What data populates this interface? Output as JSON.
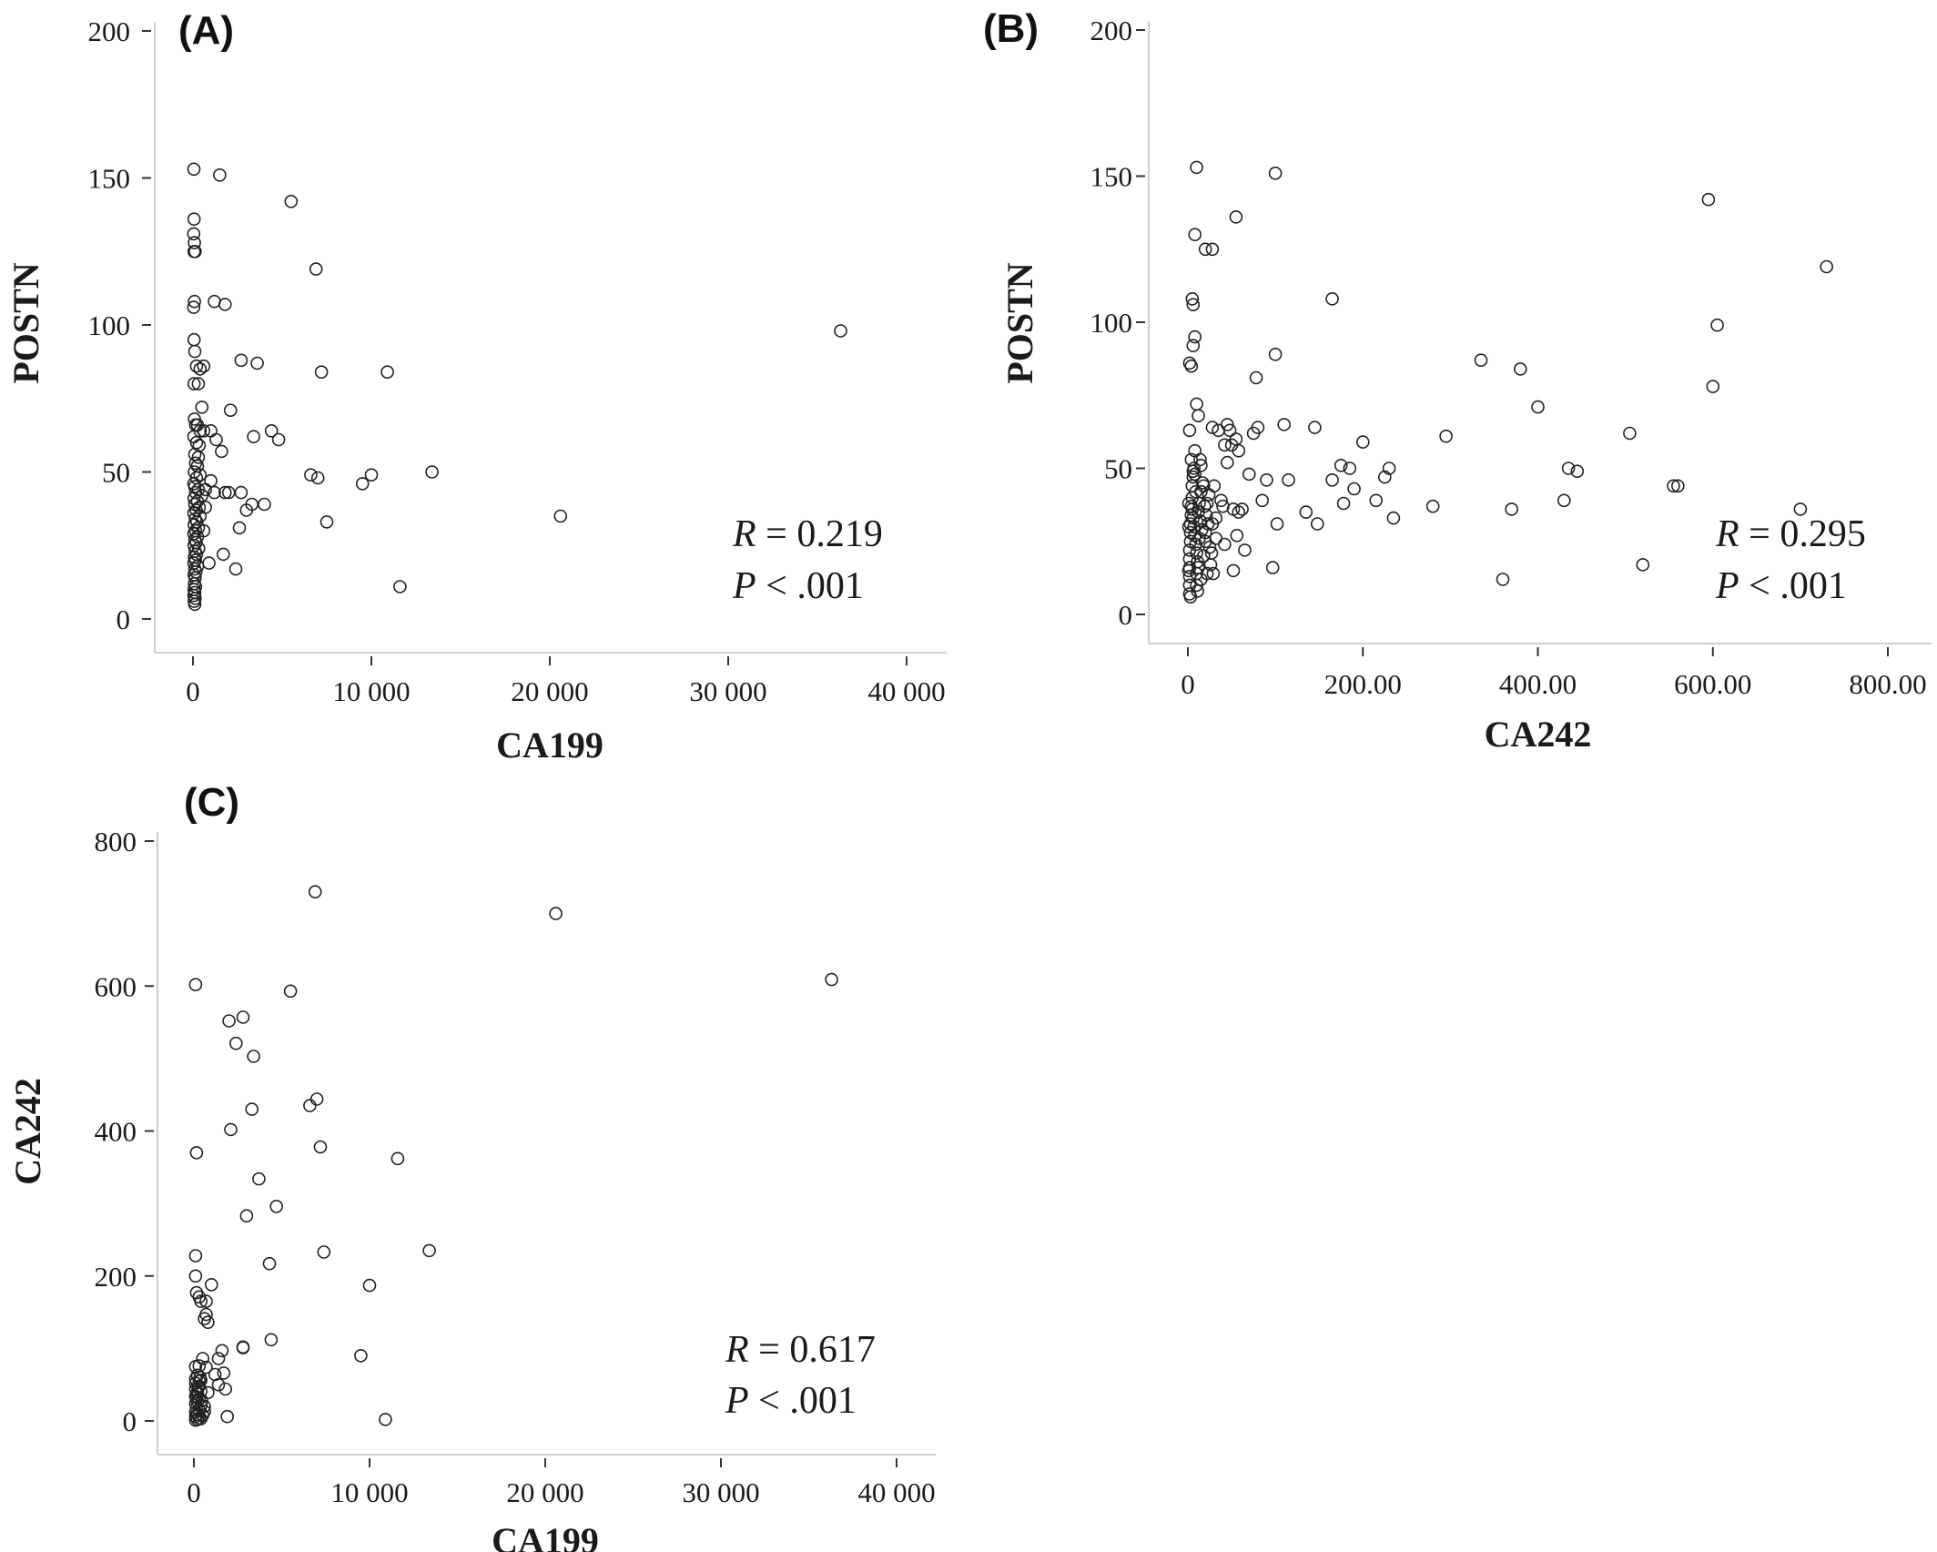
{
  "chart_data": [
    {
      "type": "scatter",
      "panel_label": "(A)",
      "xlabel": "CA199",
      "ylabel": "POSTN",
      "xlim": [
        0,
        40000
      ],
      "ylim": [
        0,
        200
      ],
      "xticks": [
        0,
        10000,
        20000,
        30000,
        40000
      ],
      "xtick_labels": [
        "0",
        "10 000",
        "20 000",
        "30 000",
        "40 000"
      ],
      "yticks": [
        0,
        50,
        100,
        150,
        200
      ],
      "ytick_labels": [
        "0",
        "50",
        "100",
        "150",
        "200"
      ],
      "annotation": {
        "r_label": "R",
        "r_value": " = 0.219",
        "p_label": "P",
        "p_value": " < .001"
      },
      "points": [
        [
          50,
          153
        ],
        [
          60,
          136
        ],
        [
          40,
          131
        ],
        [
          80,
          128
        ],
        [
          60,
          125
        ],
        [
          120,
          125
        ],
        [
          80,
          108
        ],
        [
          40,
          106
        ],
        [
          60,
          95
        ],
        [
          100,
          91
        ],
        [
          200,
          86
        ],
        [
          400,
          85
        ],
        [
          60,
          80
        ],
        [
          300,
          80
        ],
        [
          500,
          72
        ],
        [
          80,
          68
        ],
        [
          150,
          66
        ],
        [
          250,
          66
        ],
        [
          400,
          64
        ],
        [
          600,
          64
        ],
        [
          50,
          62
        ],
        [
          200,
          60
        ],
        [
          350,
          59
        ],
        [
          100,
          56
        ],
        [
          300,
          55
        ],
        [
          150,
          53
        ],
        [
          250,
          52
        ],
        [
          80,
          50
        ],
        [
          400,
          49
        ],
        [
          200,
          48
        ],
        [
          50,
          46
        ],
        [
          100,
          45
        ],
        [
          300,
          44
        ],
        [
          150,
          43
        ],
        [
          500,
          42
        ],
        [
          60,
          41
        ],
        [
          250,
          40
        ],
        [
          100,
          39
        ],
        [
          350,
          38
        ],
        [
          180,
          37
        ],
        [
          50,
          36
        ],
        [
          400,
          35
        ],
        [
          120,
          34
        ],
        [
          220,
          33
        ],
        [
          70,
          32
        ],
        [
          300,
          31
        ],
        [
          150,
          30
        ],
        [
          50,
          29
        ],
        [
          250,
          28
        ],
        [
          100,
          27
        ],
        [
          180,
          26
        ],
        [
          60,
          25
        ],
        [
          320,
          24
        ],
        [
          120,
          23
        ],
        [
          200,
          22
        ],
        [
          80,
          21
        ],
        [
          140,
          20
        ],
        [
          50,
          19
        ],
        [
          260,
          18
        ],
        [
          100,
          17
        ],
        [
          170,
          16
        ],
        [
          60,
          15
        ],
        [
          120,
          14
        ],
        [
          80,
          12
        ],
        [
          150,
          11
        ],
        [
          60,
          10
        ],
        [
          100,
          9
        ],
        [
          50,
          8
        ],
        [
          120,
          7
        ],
        [
          70,
          6
        ],
        [
          100,
          5
        ],
        [
          1500,
          151
        ],
        [
          1200,
          108
        ],
        [
          1800,
          107
        ],
        [
          600,
          86
        ],
        [
          1000,
          64
        ],
        [
          1300,
          61
        ],
        [
          2100,
          71
        ],
        [
          1600,
          57
        ],
        [
          1000,
          47
        ],
        [
          700,
          44
        ],
        [
          1200,
          43
        ],
        [
          1800,
          43
        ],
        [
          2000,
          43
        ],
        [
          700,
          38
        ],
        [
          600,
          30
        ],
        [
          900,
          19
        ],
        [
          1700,
          22
        ],
        [
          2400,
          17
        ],
        [
          2700,
          88
        ],
        [
          3600,
          87
        ],
        [
          2600,
          31
        ],
        [
          2700,
          43
        ],
        [
          3000,
          37
        ],
        [
          3300,
          39
        ],
        [
          3400,
          62
        ],
        [
          4000,
          39
        ],
        [
          4400,
          64
        ],
        [
          4800,
          61
        ],
        [
          5500,
          142
        ],
        [
          6600,
          49
        ],
        [
          7000,
          48
        ],
        [
          6900,
          119
        ],
        [
          7200,
          84
        ],
        [
          7500,
          33
        ],
        [
          9500,
          46
        ],
        [
          10000,
          49
        ],
        [
          10900,
          84
        ],
        [
          11600,
          11
        ],
        [
          13400,
          50
        ],
        [
          20600,
          35
        ],
        [
          36300,
          98
        ]
      ]
    },
    {
      "type": "scatter",
      "panel_label": "(B)",
      "xlabel": "CA242",
      "ylabel": "POSTN",
      "xlim": [
        0,
        800
      ],
      "ylim": [
        0,
        200
      ],
      "xticks": [
        0,
        200,
        400,
        600,
        800
      ],
      "xtick_labels": [
        "0",
        "200.00",
        "400.00",
        "600.00",
        "800.00"
      ],
      "yticks": [
        0,
        50,
        100,
        150,
        200
      ],
      "ytick_labels": [
        "0",
        "50",
        "100",
        "150",
        "200"
      ],
      "annotation": {
        "r_label": "R",
        "r_value": " = 0.295",
        "p_label": "P",
        "p_value": " < .001"
      },
      "points": [
        [
          10,
          153
        ],
        [
          100,
          151
        ],
        [
          8,
          130
        ],
        [
          55,
          136
        ],
        [
          20,
          125
        ],
        [
          28,
          125
        ],
        [
          5,
          108
        ],
        [
          6,
          106
        ],
        [
          165,
          108
        ],
        [
          8,
          95
        ],
        [
          6,
          92
        ],
        [
          2,
          86
        ],
        [
          4,
          85
        ],
        [
          100,
          89
        ],
        [
          335,
          87
        ],
        [
          380,
          84
        ],
        [
          605,
          99
        ],
        [
          730,
          119
        ],
        [
          595,
          142
        ],
        [
          600,
          78
        ],
        [
          400,
          71
        ],
        [
          505,
          62
        ],
        [
          555,
          44
        ],
        [
          560,
          44
        ],
        [
          435,
          50
        ],
        [
          445,
          49
        ],
        [
          430,
          39
        ],
        [
          370,
          36
        ],
        [
          295,
          61
        ],
        [
          280,
          37
        ],
        [
          230,
          50
        ],
        [
          225,
          47
        ],
        [
          235,
          33
        ],
        [
          215,
          39
        ],
        [
          200,
          59
        ],
        [
          175,
          51
        ],
        [
          185,
          50
        ],
        [
          190,
          43
        ],
        [
          178,
          38
        ],
        [
          165,
          46
        ],
        [
          145,
          64
        ],
        [
          135,
          35
        ],
        [
          148,
          31
        ],
        [
          110,
          65
        ],
        [
          115,
          46
        ],
        [
          102,
          31
        ],
        [
          97,
          16
        ],
        [
          90,
          46
        ],
        [
          85,
          39
        ],
        [
          80,
          64
        ],
        [
          75,
          62
        ],
        [
          78,
          81
        ],
        [
          70,
          48
        ],
        [
          65,
          22
        ],
        [
          55,
          60
        ],
        [
          58,
          56
        ],
        [
          52,
          36
        ],
        [
          45,
          65
        ],
        [
          48,
          63
        ],
        [
          42,
          58
        ],
        [
          40,
          37
        ],
        [
          38,
          39
        ],
        [
          35,
          63
        ],
        [
          32,
          33
        ],
        [
          28,
          64
        ],
        [
          25,
          23
        ],
        [
          22,
          38
        ],
        [
          20,
          28
        ],
        [
          18,
          20
        ],
        [
          15,
          12
        ],
        [
          12,
          16
        ],
        [
          10,
          10
        ],
        [
          10,
          72
        ],
        [
          12,
          68
        ],
        [
          8,
          56
        ],
        [
          7,
          50
        ],
        [
          6,
          47
        ],
        [
          5,
          44
        ],
        [
          5,
          40
        ],
        [
          4,
          37
        ],
        [
          4,
          34
        ],
        [
          3,
          31
        ],
        [
          3,
          28
        ],
        [
          3,
          25
        ],
        [
          2,
          22
        ],
        [
          2,
          19
        ],
        [
          2,
          16
        ],
        [
          2,
          13
        ],
        [
          2,
          10
        ],
        [
          2,
          7
        ],
        [
          3,
          6
        ],
        [
          5,
          36
        ],
        [
          6,
          33
        ],
        [
          7,
          30
        ],
        [
          8,
          27
        ],
        [
          9,
          24
        ],
        [
          10,
          21
        ],
        [
          11,
          18
        ],
        [
          12,
          35
        ],
        [
          13,
          38
        ],
        [
          14,
          32
        ],
        [
          15,
          42
        ],
        [
          16,
          29
        ],
        [
          18,
          44
        ],
        [
          20,
          25
        ],
        [
          22,
          14
        ],
        [
          28,
          31
        ],
        [
          30,
          44
        ],
        [
          32,
          26
        ],
        [
          42,
          24
        ],
        [
          45,
          52
        ],
        [
          50,
          58
        ],
        [
          52,
          15
        ],
        [
          56,
          27
        ],
        [
          58,
          35
        ],
        [
          62,
          36
        ],
        [
          520,
          17
        ],
        [
          700,
          36
        ],
        [
          360,
          12
        ],
        [
          2,
          63
        ],
        [
          4,
          53
        ],
        [
          6,
          49
        ],
        [
          1,
          30
        ],
        [
          1,
          15
        ],
        [
          1,
          38
        ],
        [
          8,
          48
        ],
        [
          9,
          42
        ],
        [
          10,
          14
        ],
        [
          11,
          8
        ],
        [
          13,
          26
        ],
        [
          14,
          53
        ],
        [
          15,
          51
        ],
        [
          17,
          45
        ],
        [
          19,
          37
        ],
        [
          21,
          34
        ],
        [
          23,
          31
        ],
        [
          24,
          41
        ],
        [
          26,
          17
        ],
        [
          27,
          21
        ],
        [
          29,
          14
        ]
      ]
    },
    {
      "type": "scatter",
      "panel_label": "(C)",
      "xlabel": "CA199",
      "ylabel": "CA242",
      "xlim": [
        0,
        40000
      ],
      "ylim": [
        0,
        800
      ],
      "xticks": [
        0,
        10000,
        20000,
        30000,
        40000
      ],
      "xtick_labels": [
        "0",
        "10 000",
        "20 000",
        "30 000",
        "40 000"
      ],
      "yticks": [
        0,
        200,
        400,
        600,
        800
      ],
      "ytick_labels": [
        "0",
        "200",
        "400",
        "600",
        "800"
      ],
      "annotation": {
        "r_label": "R",
        "r_value": " = 0.617",
        "p_label": "P",
        "p_value": " < .001"
      },
      "points": [
        [
          100,
          602
        ],
        [
          150,
          370
        ],
        [
          100,
          228
        ],
        [
          100,
          200
        ],
        [
          150,
          177
        ],
        [
          300,
          171
        ],
        [
          400,
          165
        ],
        [
          700,
          165
        ],
        [
          600,
          141
        ],
        [
          700,
          147
        ],
        [
          800,
          136
        ],
        [
          1000,
          188
        ],
        [
          1200,
          64
        ],
        [
          1400,
          86
        ],
        [
          1600,
          97
        ],
        [
          1700,
          66
        ],
        [
          1400,
          50
        ],
        [
          1800,
          44
        ],
        [
          1900,
          6
        ],
        [
          700,
          74
        ],
        [
          800,
          39
        ],
        [
          600,
          20
        ],
        [
          500,
          86
        ],
        [
          300,
          76
        ],
        [
          100,
          75
        ],
        [
          200,
          63
        ],
        [
          400,
          56
        ],
        [
          100,
          52
        ],
        [
          300,
          48
        ],
        [
          100,
          44
        ],
        [
          400,
          41
        ],
        [
          200,
          37
        ],
        [
          100,
          34
        ],
        [
          300,
          30
        ],
        [
          200,
          27
        ],
        [
          100,
          24
        ],
        [
          400,
          21
        ],
        [
          150,
          18
        ],
        [
          300,
          15
        ],
        [
          100,
          12
        ],
        [
          200,
          9
        ],
        [
          100,
          6
        ],
        [
          300,
          4
        ],
        [
          200,
          2
        ],
        [
          400,
          3
        ],
        [
          100,
          1
        ],
        [
          500,
          8
        ],
        [
          600,
          13
        ],
        [
          200,
          40
        ],
        [
          300,
          55
        ],
        [
          450,
          28
        ],
        [
          150,
          33
        ],
        [
          250,
          46
        ],
        [
          350,
          60
        ],
        [
          100,
          58
        ],
        [
          2000,
          552
        ],
        [
          2800,
          557
        ],
        [
          2400,
          521
        ],
        [
          3400,
          503
        ],
        [
          2100,
          402
        ],
        [
          3300,
          430
        ],
        [
          3700,
          334
        ],
        [
          3000,
          283
        ],
        [
          4700,
          296
        ],
        [
          4300,
          217
        ],
        [
          2800,
          101
        ],
        [
          2800,
          102
        ],
        [
          4400,
          112
        ],
        [
          5500,
          593
        ],
        [
          6900,
          730
        ],
        [
          6600,
          435
        ],
        [
          7000,
          444
        ],
        [
          7200,
          378
        ],
        [
          7400,
          233
        ],
        [
          9500,
          90
        ],
        [
          10000,
          187
        ],
        [
          10900,
          2
        ],
        [
          11600,
          362
        ],
        [
          13400,
          235
        ],
        [
          20600,
          700
        ],
        [
          36300,
          609
        ]
      ]
    }
  ]
}
